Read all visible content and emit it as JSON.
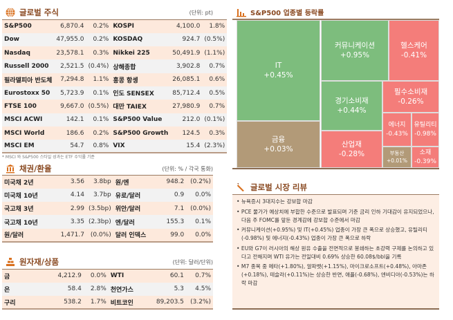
{
  "global_stocks": {
    "title": "글로벌 주식",
    "unit": "(단위: pt)",
    "rows": [
      [
        "S&P500",
        "6,870.4",
        "0.2%",
        "KOSPI",
        "4,100.0",
        "1.8%"
      ],
      [
        "Dow",
        "47,955.0",
        "0.2%",
        "KOSDAQ",
        "924.7",
        "(0.5%)"
      ],
      [
        "Nasdaq",
        "23,578.1",
        "0.3%",
        "Nikkei 225",
        "50,491.9",
        "(1.1%)"
      ],
      [
        "Russell 2000",
        "2,521.5",
        "(0.4%)",
        "상해종합",
        "3,902.8",
        "0.7%"
      ],
      [
        "필라델피아 반도체",
        "7,294.8",
        "1.1%",
        "홍콩 항셍",
        "26,085.1",
        "0.6%"
      ],
      [
        "Eurostoxx 50",
        "5,723.9",
        "0.1%",
        "인도 SENSEX",
        "85,712.4",
        "0.5%"
      ],
      [
        "FTSE 100",
        "9,667.0",
        "(0.5%)",
        "대만 TAIEX",
        "27,980.9",
        "0.7%"
      ],
      [
        "MSCI ACWI",
        "142.1",
        "0.1%",
        "S&P500 Value",
        "212.0",
        "(0.1%)"
      ],
      [
        "MSCI World",
        "186.6",
        "0.2%",
        "S&P500 Growth",
        "124.5",
        "0.3%"
      ],
      [
        "MSCI EM",
        "54.7",
        "0.8%",
        "VIX",
        "15.4",
        "(2.3%)"
      ]
    ],
    "footnote": "* MSCI 와 S&P500 스타일 성과는 ETF 수익률 기준"
  },
  "bonds_fx": {
    "title": "채권/환율",
    "unit": "(단위: % / 각국 통화)",
    "rows": [
      [
        "미국채 2년",
        "3.56",
        "3.8bp",
        "원/엔",
        "948.2",
        "(0.2%)"
      ],
      [
        "미국채 10년",
        "4.14",
        "3.7bp",
        "유로/달러",
        "0.9",
        "0.0%"
      ],
      [
        "국고채 3년",
        "2.99",
        "(3.5bp)",
        "위안/달러",
        "7.1",
        "(0.0%)"
      ],
      [
        "국고채 10년",
        "3.35",
        "(2.3bp)",
        "엔/달러",
        "155.3",
        "0.1%"
      ],
      [
        "원/달러",
        "1,471.7",
        "(0.0%)",
        "달러 인덱스",
        "99.0",
        "0.0%"
      ]
    ]
  },
  "commodities": {
    "title": "원자재/상품",
    "unit": "(단위: 달러/단위)",
    "rows": [
      [
        "금",
        "4,212.9",
        "0.0%",
        "WTI",
        "60.1",
        "0.7%"
      ],
      [
        "은",
        "58.4",
        "2.8%",
        "천연가스",
        "5.3",
        "4.5%"
      ],
      [
        "구리",
        "538.2",
        "1.7%",
        "비트코인",
        "89,203.5",
        "(3.2%)"
      ]
    ]
  },
  "sector": {
    "title": "S&P500 업종별 등락률",
    "colors": {
      "up": "#7dbd7d",
      "down": "#f47d7a",
      "flat": "#b29a78"
    },
    "cells": [
      {
        "name": "IT",
        "change": "+0.45%"
      },
      {
        "name": "금융",
        "change": "+0.03%"
      },
      {
        "name": "커뮤니케이션",
        "change": "+0.95%"
      },
      {
        "name": "헬스케어",
        "change": "-0.41%"
      },
      {
        "name": "경기소비재",
        "change": "+0.44%"
      },
      {
        "name": "산업재",
        "change": "-0.28%"
      },
      {
        "name": "필수소비재",
        "change": "-0.26%"
      },
      {
        "name": "에너지",
        "change": "-0.43%"
      },
      {
        "name": "유틸리티",
        "change": "-0.98%"
      },
      {
        "name": "부동산",
        "change": "+0.01%"
      },
      {
        "name": "소재",
        "change": "-0.39%"
      }
    ]
  },
  "review": {
    "title": "글로벌 시장 리뷰",
    "items": [
      "뉴욕증시 3대지수는 강보합 마감",
      "PCE 물가가 예상치에 부합한 수준으로 발표되며 기준 금리 인하 기대감이 유지되었으나, 다음 주 FOMC를 앞둔 경계감에 강보합 수준에서 마감",
      "커뮤니케이션(+0.95%) 및 IT(+0.45%) 업종이 가장 큰 폭으로 상승했고, 유틸리티(-0.98%) 및 에너지(-0.43%) 업종이 가장 큰 폭으로 하락",
      "EU와 G7이 러시아의 해상 원유 수출을 전면적으로 봉쇄하는 초강력 구제를 논의하고 있다고 전해지며 WTI 유가는 전일대비 0.69% 상승한 60.08$/bbl을 기록",
      "M7 종목 중 메타(+1.80%), 알파벳(+1.15%), 마이크로소프트(+0.48%), 아마존(+0.18%), 테슬라(+0.11%)는 상승한 반면, 애플(-0.68%), 엔비디아(-0.53%)는 하락 마감"
    ]
  }
}
